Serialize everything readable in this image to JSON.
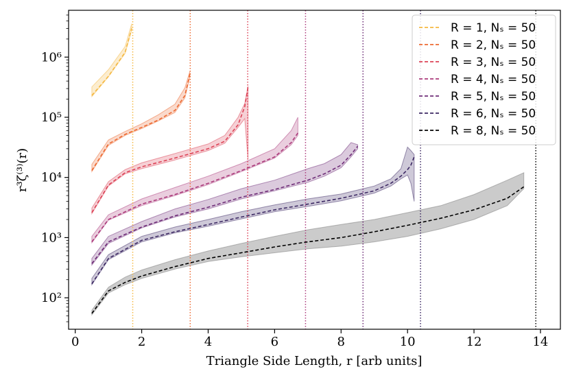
{
  "chart_data": {
    "type": "line",
    "title": "",
    "xlabel": "Triangle Side Length, r [arb units]",
    "ylabel": "r³ζ⁽³⁾(r)",
    "y_scale": "log",
    "xlim": [
      -0.2,
      14.6
    ],
    "ylim": [
      30,
      6000000
    ],
    "xticks": [
      0,
      2,
      4,
      6,
      8,
      10,
      12,
      14
    ],
    "xtick_labels": [
      "0",
      "2",
      "4",
      "6",
      "8",
      "10",
      "12",
      "14"
    ],
    "yticks": [
      100,
      1000,
      10000,
      100000,
      1000000
    ],
    "ytick_labels": [
      "10²",
      "10³",
      "10⁴",
      "10⁵",
      "10⁶"
    ],
    "legend_position": "top-right",
    "series": [
      {
        "name": "R = 1, Nₛ = 50",
        "R": 1,
        "Ns": 50,
        "color": "#f5b841",
        "vline": 1.73,
        "x": [
          0.5,
          1.0,
          1.5,
          1.7
        ],
        "values": [
          230000,
          480000,
          1200000,
          3000000
        ],
        "band_lower": [
          220000,
          470000,
          1150000,
          2800000
        ],
        "band_upper": [
          320000,
          620000,
          1500000,
          3600000
        ]
      },
      {
        "name": "R = 2, Nₛ = 50",
        "R": 2,
        "Ns": 50,
        "color": "#ed6a32",
        "vline": 3.46,
        "x": [
          0.5,
          1.0,
          1.5,
          2.0,
          2.5,
          3.0,
          3.3,
          3.45
        ],
        "values": [
          13000,
          36000,
          52000,
          68000,
          90000,
          130000,
          230000,
          520000
        ],
        "band_lower": [
          12500,
          34000,
          50000,
          65000,
          87000,
          120000,
          210000,
          470000
        ],
        "band_upper": [
          16500,
          42000,
          58000,
          78000,
          110000,
          165000,
          310000,
          580000
        ]
      },
      {
        "name": "R = 3, Nₛ = 50",
        "R": 3,
        "Ns": 50,
        "color": "#dc4256",
        "vline": 5.19,
        "x": [
          0.5,
          1.0,
          1.5,
          2.0,
          3.0,
          4.0,
          4.5,
          4.9,
          5.1,
          5.2
        ],
        "values": [
          2600,
          7500,
          12000,
          15000,
          21000,
          30000,
          40000,
          75000,
          150000,
          320000
        ],
        "band_lower": [
          2500,
          7200,
          11500,
          14000,
          19500,
          28000,
          37000,
          68000,
          95000,
          20000
        ],
        "band_upper": [
          3100,
          8500,
          13500,
          17500,
          25000,
          36000,
          50000,
          100000,
          170000,
          330000
        ]
      },
      {
        "name": "R = 4, Nₛ = 50",
        "R": 4,
        "Ns": 50,
        "color": "#ab3a7b",
        "vline": 6.93,
        "x": [
          0.5,
          1.0,
          2.0,
          3.0,
          4.0,
          5.0,
          6.0,
          6.5,
          6.7
        ],
        "values": [
          850,
          2000,
          3600,
          5200,
          8000,
          13000,
          22000,
          38000,
          55000
        ],
        "band_lower": [
          820,
          1950,
          3400,
          5000,
          7600,
          12500,
          21000,
          35000,
          50000
        ],
        "band_upper": [
          1050,
          2400,
          4400,
          6800,
          10500,
          17000,
          30000,
          60000,
          100000
        ]
      },
      {
        "name": "R = 5, Nₛ = 50",
        "R": 5,
        "Ns": 50,
        "color": "#6e2c77",
        "vline": 8.66,
        "x": [
          0.5,
          1.0,
          2.0,
          3.0,
          4.0,
          5.0,
          6.0,
          7.0,
          7.5,
          8.0,
          8.3,
          8.5
        ],
        "values": [
          370,
          850,
          1500,
          2300,
          3200,
          4700,
          6300,
          9000,
          11500,
          16000,
          24000,
          33000
        ],
        "band_lower": [
          350,
          800,
          1450,
          2200,
          3000,
          4400,
          6000,
          8300,
          10500,
          14500,
          22000,
          30000
        ],
        "band_upper": [
          450,
          1050,
          1850,
          3000,
          4300,
          6500,
          9000,
          14000,
          17000,
          24000,
          38000,
          35000
        ]
      },
      {
        "name": "R = 6, Nₛ = 50",
        "R": 6,
        "Ns": 50,
        "color": "#3c2863",
        "vline": 10.39,
        "x": [
          0.5,
          1.0,
          2.0,
          3.0,
          4.0,
          5.0,
          6.0,
          7.0,
          8.0,
          9.0,
          9.5,
          9.8,
          10.0,
          10.1,
          10.2
        ],
        "values": [
          170,
          450,
          900,
          1250,
          1650,
          2200,
          2900,
          3600,
          4500,
          6000,
          8000,
          10500,
          13500,
          16000,
          22000
        ],
        "band_lower": [
          165,
          430,
          850,
          1200,
          1550,
          2050,
          2700,
          3300,
          4100,
          5500,
          7200,
          9500,
          11000,
          8000,
          4000
        ],
        "band_upper": [
          210,
          520,
          1050,
          1500,
          2000,
          2700,
          3500,
          4400,
          5300,
          7200,
          9500,
          14000,
          32000,
          28000,
          24000
        ]
      },
      {
        "name": "R = 8, Nₛ = 50",
        "R": 8,
        "Ns": 50,
        "color": "#000000",
        "vline": 13.86,
        "x": [
          0.5,
          1.0,
          1.5,
          2.0,
          3.0,
          4.0,
          5.0,
          6.0,
          7.0,
          8.0,
          9.0,
          10.0,
          11.0,
          12.0,
          13.0,
          13.5
        ],
        "values": [
          55,
          130,
          180,
          230,
          330,
          450,
          560,
          700,
          850,
          1000,
          1250,
          1600,
          2100,
          2900,
          4500,
          7000
        ],
        "band_lower": [
          52,
          120,
          165,
          210,
          300,
          400,
          480,
          560,
          650,
          720,
          850,
          1050,
          1400,
          2000,
          3400,
          6500
        ],
        "band_upper": [
          62,
          150,
          220,
          290,
          430,
          600,
          800,
          1050,
          1350,
          1650,
          2000,
          2600,
          3400,
          5200,
          9000,
          12000
        ]
      }
    ]
  }
}
